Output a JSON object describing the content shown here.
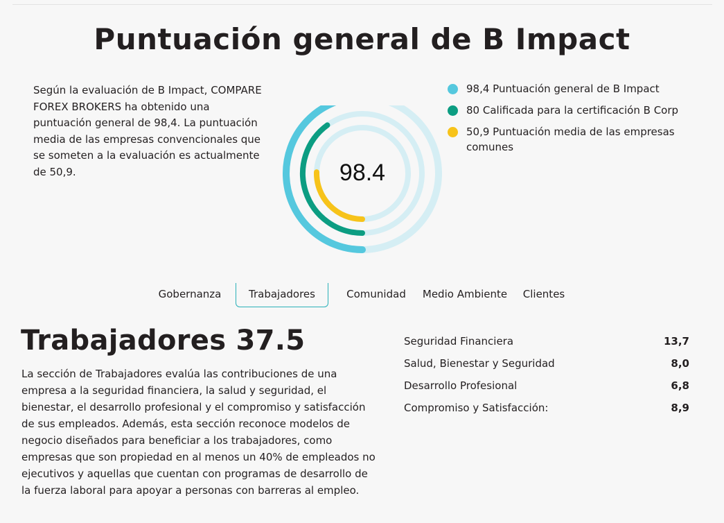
{
  "page": {
    "title": "Puntuación general de B Impact",
    "intro_text": "Según la evaluación de B Impact, COMPARE FOREX BROKERS ha obtenido una puntuación general de 98,4. La puntuación media de las empresas convencionales que se someten a la evaluación es actualmente de 50,9."
  },
  "score_chart": {
    "center_label": "98.4",
    "max_score": 200,
    "series": [
      {
        "label": "98,4 Puntuación general de B Impact",
        "value": 98.4,
        "color": "#55c8de",
        "track_color": "#d5eef4"
      },
      {
        "label": "80 Calificada para la certificación B Corp",
        "value": 80,
        "color": "#0c9d82",
        "track_color": "#d5eef4"
      },
      {
        "label": "50,9 Puntuación media de las empresas comunes",
        "value": 50.9,
        "color": "#f7c31a",
        "track_color": "#d5eef4"
      }
    ]
  },
  "tabs": [
    {
      "label": "Gobernanza",
      "active": false
    },
    {
      "label": "Trabajadores",
      "active": true
    },
    {
      "label": "Comunidad",
      "active": false
    },
    {
      "label": "Medio Ambiente",
      "active": false
    },
    {
      "label": "Clientes",
      "active": false
    }
  ],
  "section": {
    "heading": "Trabajadores 37.5",
    "text": "La sección de Trabajadores evalúa las contribuciones de una empresa a la seguridad financiera, la salud y seguridad, el bienestar, el desarrollo profesional y el compromiso y satisfacción de sus empleados. Además, esta sección reconoce modelos de negocio diseñados para beneficiar a los trabajadores, como empresas que son propiedad en al menos un 40% de empleados no ejecutivos y aquellas que cuentan con programas de desarrollo de la fuerza laboral para apoyar a personas con barreras al empleo.",
    "metrics": [
      {
        "label": "Seguridad Financiera",
        "value": "13,7"
      },
      {
        "label": "Salud, Bienestar y Seguridad",
        "value": "8,0"
      },
      {
        "label": "Desarrollo Profesional",
        "value": "6,8"
      },
      {
        "label": "Compromiso y Satisfacción:",
        "value": "8,9"
      }
    ]
  }
}
